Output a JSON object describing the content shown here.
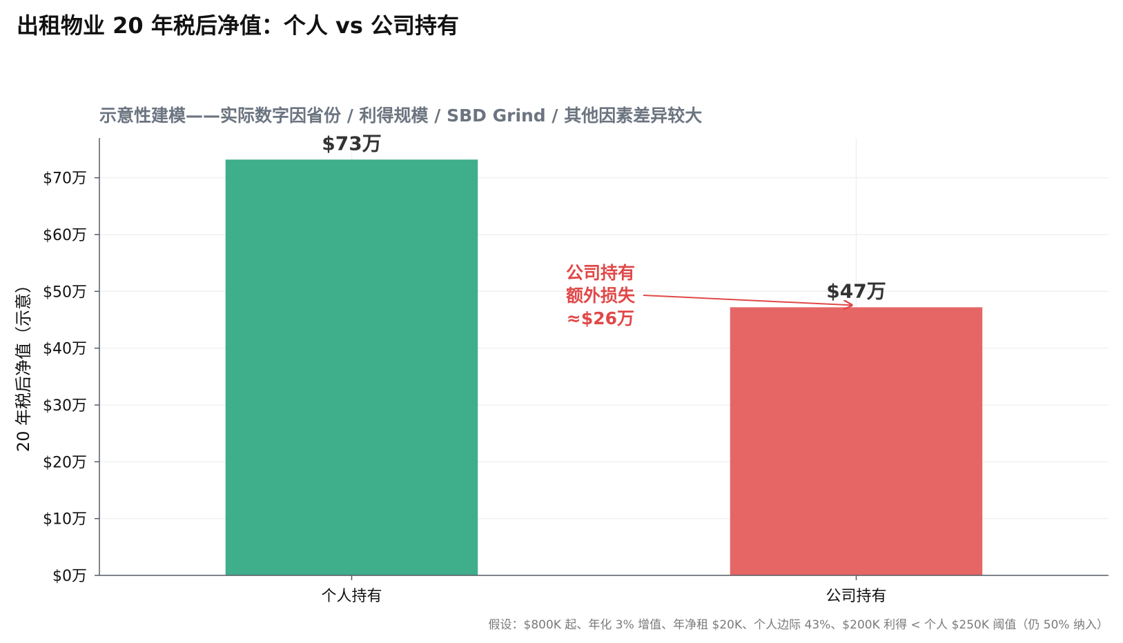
{
  "title": "出租物业 20 年税后净值：个人 vs 公司持有",
  "subtitle": "示意性建模——实际数字因省份 / 利得规模 / SBD Grind / 其他因素差异较大",
  "footnote": "假设：$800K 起、年化 3% 增值、年净租 $20K、个人边际 43%、$200K 利得 < 个人 $250K 阈值（仍 50% 纳入）",
  "colors": {
    "individual": "#3fae8a",
    "corporate": "#e66666",
    "annotation": "#e04848",
    "axis": "#555b63",
    "grid": "#f0f0f0"
  },
  "chart_data": {
    "type": "bar",
    "title": "出租物业 20 年税后净值：个人 vs 公司持有",
    "subtitle": "示意性建模——实际数字因省份 / 利得规模 / SBD Grind / 其他因素差异较大",
    "categories": [
      "个人持有",
      "公司持有"
    ],
    "values": [
      73.2,
      47.2
    ],
    "value_labels": [
      "$73万",
      "$47万"
    ],
    "ylabel": "20 年税后净值（示意）",
    "xlabel": "",
    "ylim": [
      0,
      77
    ],
    "yticks": [
      0,
      10,
      20,
      30,
      40,
      50,
      60,
      70
    ],
    "ytick_labels": [
      "$0万",
      "$10万",
      "$20万",
      "$30万",
      "$40万",
      "$50万",
      "$60万",
      "$70万"
    ],
    "grid": true,
    "annotation": {
      "lines": [
        "公司持有",
        "额外损失",
        "≈$26万"
      ],
      "arrow_target_category": "公司持有"
    }
  }
}
